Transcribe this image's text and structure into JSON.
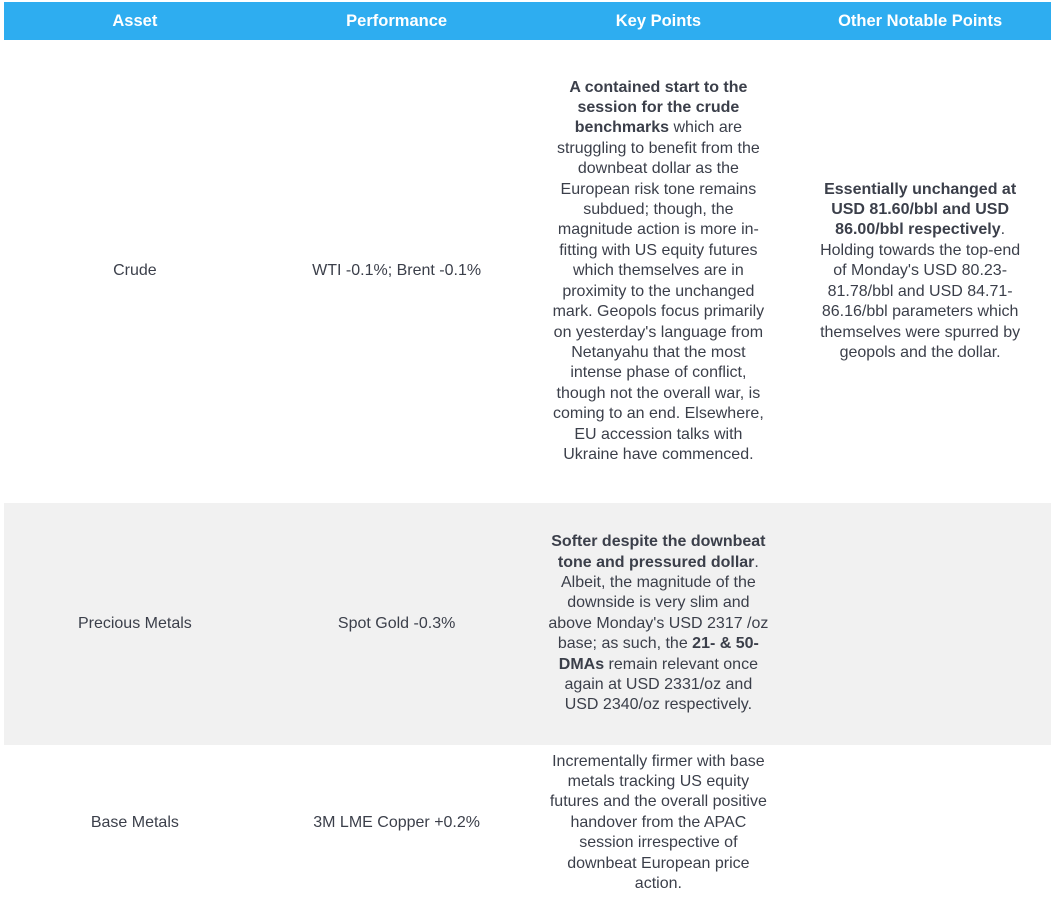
{
  "headers": [
    "Asset",
    "Performance",
    "Key Points",
    "Other Notable Points"
  ],
  "rows": [
    {
      "asset": "Crude",
      "performance": "WTI -0.1%; Brent -0.1%",
      "key_points": [
        {
          "text": "A contained start to the session for the crude benchmarks",
          "bold": true
        },
        {
          "text": " which are struggling to benefit from the downbeat dollar as the European risk tone remains subdued; though, the magnitude action is more in-fitting with US equity futures which themselves are in proximity to the unchanged mark. Geopols focus primarily on yesterday's language from Netanyahu that the most intense phase of conflict, though not the overall war, is coming to an end. Elsewhere, EU accession talks with Ukraine have commenced.",
          "bold": false
        }
      ],
      "other": [
        {
          "text": "Essentially unchanged at USD 81.60/bbl and USD 86.00/bbl respectively",
          "bold": true
        },
        {
          "text": ". Holding towards the top-end of Monday's USD 80.23-81.78/bbl and USD 84.71-86.16/bbl parameters which themselves were spurred by geopols and the dollar.",
          "bold": false
        }
      ]
    },
    {
      "asset": "Precious Metals",
      "performance": "Spot Gold -0.3%",
      "key_points": [
        {
          "text": "Softer despite the downbeat tone and pressured dollar",
          "bold": true
        },
        {
          "text": ". Albeit, the magnitude of the downside is very slim and above Monday's USD 2317 /oz base; as such, the ",
          "bold": false
        },
        {
          "text": "21- & 50-DMAs",
          "bold": true
        },
        {
          "text": " remain relevant once again at USD 2331/oz and USD 2340/oz respectively.",
          "bold": false
        }
      ],
      "other": []
    },
    {
      "asset": "Base Metals",
      "performance": "3M LME Copper +0.2%",
      "key_points": [
        {
          "text": "Incrementally firmer with base metals tracking US equity futures and the overall positive handover from the APAC session irrespective of downbeat European price action.",
          "bold": false
        }
      ],
      "other": []
    }
  ],
  "colors": {
    "header_bg": "#2eadf0",
    "alt_row_bg": "#f1f1f1",
    "text": "#3b3f4a"
  }
}
